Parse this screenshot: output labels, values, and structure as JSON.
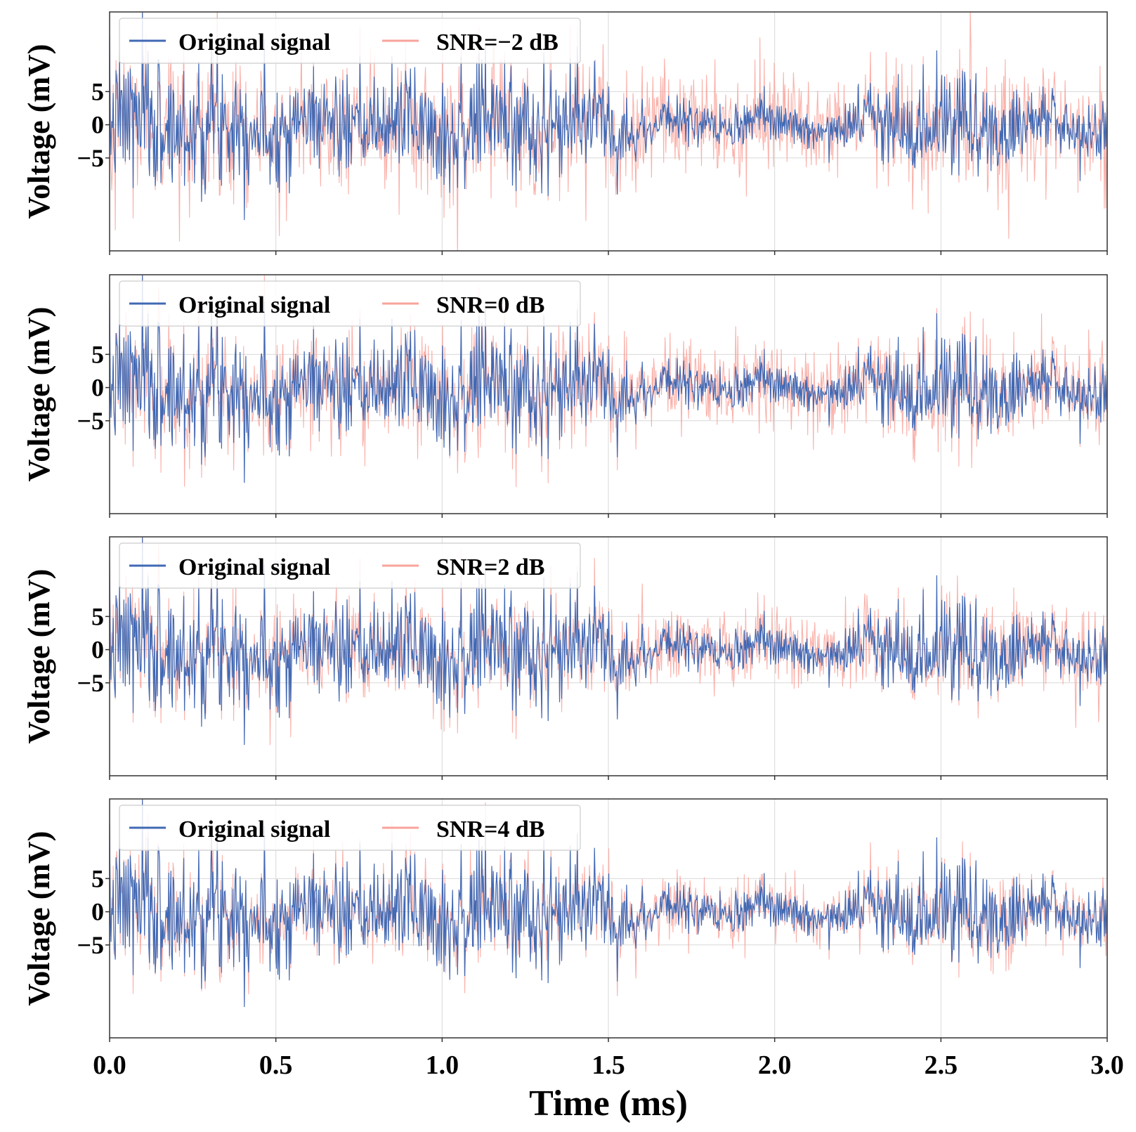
{
  "chart_data": [
    {
      "type": "line",
      "title": "",
      "xlabel": "",
      "ylabel": "Voltage (mV)",
      "xlim": [
        0.0,
        3.0
      ],
      "ylim": [
        -19,
        17
      ],
      "yticks": [
        "5",
        "0",
        "−5"
      ],
      "ytick_values": [
        5,
        0,
        -5
      ],
      "xticks": [
        "0.0",
        "0.5",
        "1.0",
        "1.5",
        "2.0",
        "2.5",
        "3.0"
      ],
      "xtick_values": [
        0.0,
        0.5,
        1.0,
        1.5,
        2.0,
        2.5,
        3.0
      ],
      "grid": true,
      "legend_position": "top-left",
      "series": [
        {
          "name": "Original signal",
          "color": "#4169b4",
          "approx_range": [
            -14.5,
            9.5
          ],
          "seed": 7
        },
        {
          "name": "SNR=−2 dB",
          "color": "#f9a39b",
          "approx_range": [
            -17,
            14
          ],
          "noise_level": 1.0
        }
      ]
    },
    {
      "type": "line",
      "title": "",
      "xlabel": "",
      "ylabel": "Voltage (mV)",
      "xlim": [
        0.0,
        3.0
      ],
      "ylim": [
        -19,
        17
      ],
      "yticks": [
        "5",
        "0",
        "−5"
      ],
      "ytick_values": [
        5,
        0,
        -5
      ],
      "xticks": [
        "0.0",
        "0.5",
        "1.0",
        "1.5",
        "2.0",
        "2.5",
        "3.0"
      ],
      "xtick_values": [
        0.0,
        0.5,
        1.0,
        1.5,
        2.0,
        2.5,
        3.0
      ],
      "grid": true,
      "legend_position": "top-left",
      "series": [
        {
          "name": "Original signal",
          "color": "#4169b4",
          "approx_range": [
            -18,
            12
          ],
          "seed": 7
        },
        {
          "name": "SNR=0 dB",
          "color": "#f9a39b",
          "approx_range": [
            -17,
            13
          ],
          "noise_level": 0.8
        }
      ]
    },
    {
      "type": "line",
      "title": "",
      "xlabel": "",
      "ylabel": "Voltage (mV)",
      "xlim": [
        0.0,
        3.0
      ],
      "ylim": [
        -19,
        17
      ],
      "yticks": [
        "5",
        "0",
        "−5"
      ],
      "ytick_values": [
        5,
        0,
        -5
      ],
      "xticks": [
        "0.0",
        "0.5",
        "1.0",
        "1.5",
        "2.0",
        "2.5",
        "3.0"
      ],
      "xtick_values": [
        0.0,
        0.5,
        1.0,
        1.5,
        2.0,
        2.5,
        3.0
      ],
      "grid": true,
      "legend_position": "top-left",
      "series": [
        {
          "name": "Original signal",
          "color": "#4169b4",
          "approx_range": [
            -17.5,
            11.5
          ],
          "seed": 7
        },
        {
          "name": "SNR=2 dB",
          "color": "#f9a39b",
          "approx_range": [
            -17,
            12.5
          ],
          "noise_level": 0.63
        }
      ]
    },
    {
      "type": "line",
      "title": "",
      "xlabel": "Time (ms)",
      "ylabel": "Voltage (mV)",
      "xlim": [
        0.0,
        3.0
      ],
      "ylim": [
        -19,
        17
      ],
      "yticks": [
        "5",
        "0",
        "−5"
      ],
      "ytick_values": [
        5,
        0,
        -5
      ],
      "xticks": [
        "0.0",
        "0.5",
        "1.0",
        "1.5",
        "2.0",
        "2.5",
        "3.0"
      ],
      "xtick_values": [
        0.0,
        0.5,
        1.0,
        1.5,
        2.0,
        2.5,
        3.0
      ],
      "grid": true,
      "legend_position": "top-left",
      "series": [
        {
          "name": "Original signal",
          "color": "#4169b4",
          "approx_range": [
            -17.5,
            10.5
          ],
          "seed": 7
        },
        {
          "name": "SNR=4 dB",
          "color": "#f9a39b",
          "approx_range": [
            -13,
            13
          ],
          "noise_level": 0.5
        }
      ]
    }
  ]
}
